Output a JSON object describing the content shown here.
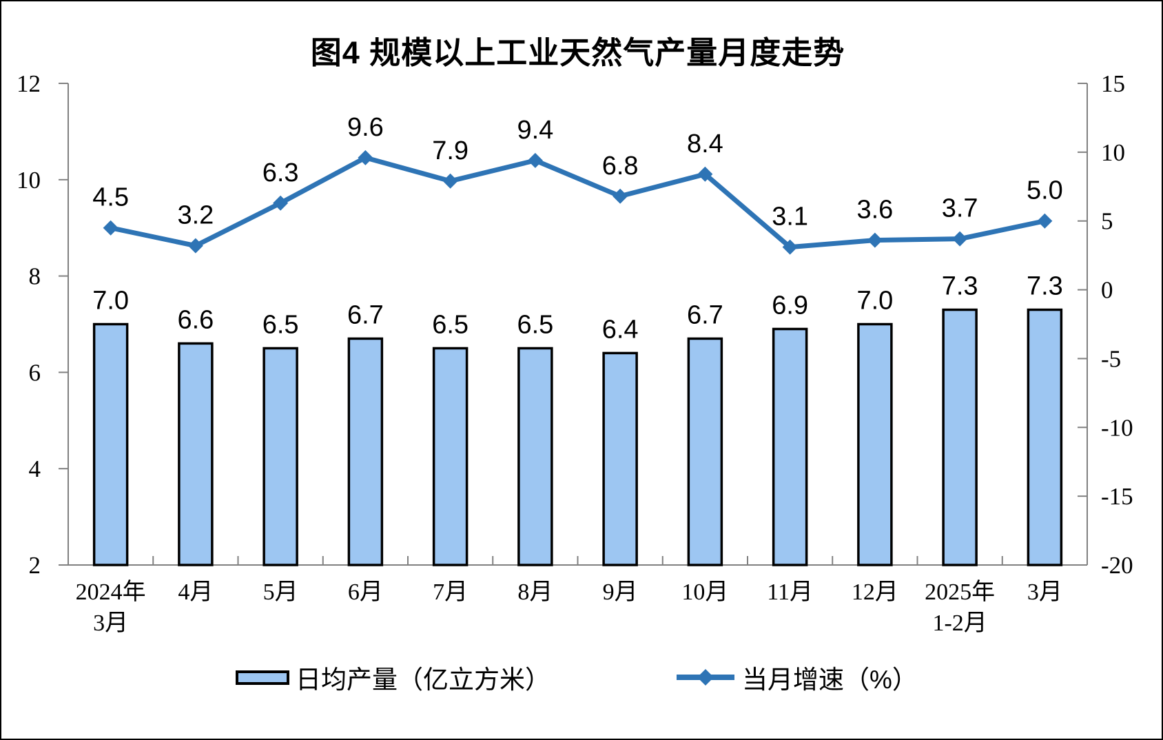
{
  "title": "图4 规模以上工业天然气产量月度走势",
  "chart_data": {
    "type": "combo",
    "categories": [
      [
        "2024年",
        "3月"
      ],
      [
        "4月"
      ],
      [
        "5月"
      ],
      [
        "6月"
      ],
      [
        "7月"
      ],
      [
        "8月"
      ],
      [
        "9月"
      ],
      [
        "10月"
      ],
      [
        "11月"
      ],
      [
        "12月"
      ],
      [
        "2025年",
        "1-2月"
      ],
      [
        "3月"
      ]
    ],
    "series": [
      {
        "name": "日均产量（亿立方米）",
        "type": "bar",
        "axis": "left",
        "values": [
          7.0,
          6.6,
          6.5,
          6.7,
          6.5,
          6.5,
          6.4,
          6.7,
          6.9,
          7.0,
          7.3,
          7.3
        ]
      },
      {
        "name": "当月增速（%）",
        "type": "line",
        "axis": "right",
        "marker": "diamond",
        "values": [
          4.5,
          3.2,
          6.3,
          9.6,
          7.9,
          9.4,
          6.8,
          8.4,
          3.1,
          3.6,
          3.7,
          5.0
        ]
      }
    ],
    "left_axis": {
      "min": 2,
      "max": 12,
      "ticks": [
        2,
        4,
        6,
        8,
        10,
        12
      ]
    },
    "right_axis": {
      "min": -20,
      "max": 15,
      "ticks": [
        -20,
        -15,
        -10,
        -5,
        0,
        5,
        10,
        15
      ]
    },
    "grid": false,
    "legend_position": "bottom",
    "value_label_decimals": 1
  },
  "colors": {
    "bar_fill": "#9DC6F2",
    "bar_border": "#000000",
    "line": "#2E74B5",
    "axis_line": "#808080",
    "text": "#000000",
    "background": "#FFFFFF"
  },
  "legend": {
    "items": [
      {
        "label": "日均产量（亿立方米）",
        "swatch": "bar"
      },
      {
        "label": "当月增速（%）",
        "swatch": "line-diamond"
      }
    ]
  }
}
